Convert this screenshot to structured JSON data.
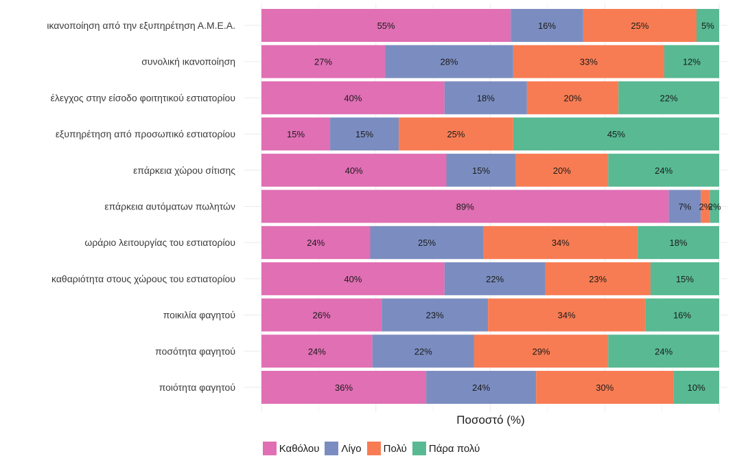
{
  "chart_data": {
    "type": "bar",
    "orientation": "horizontal",
    "stacked": true,
    "categories": [
      "ικανοποίηση από την εξυπηρέτηση Α.Μ.Ε.Α.",
      "συνολική ικανοποίηση",
      "έλεγχος στην είσοδο φοιτητικού εστιατορίου",
      "εξυπηρέτηση από προσωπικό εστιατορίου",
      "επάρκεια χώρου σίτισης",
      "επάρκεια αυτόματων πωλητών",
      "ωράριο λειτουργίας του εστιατορίου",
      "καθαριότητα στους χώρους του εστιατορίου",
      "ποικιλία φαγητού",
      "ποσότητα φαγητού",
      "ποιότητα φαγητού"
    ],
    "series": [
      {
        "name": "Καθόλου",
        "color": "#e06fb4",
        "values": [
          55,
          27,
          40,
          15,
          40,
          89,
          24,
          40,
          26,
          24,
          36
        ],
        "labels": [
          "55%",
          "27%",
          "40%",
          "15%",
          "40%",
          "89%",
          "24%",
          "40%",
          "26%",
          "24%",
          "36%"
        ]
      },
      {
        "name": "Λίγο",
        "color": "#7b8dc0",
        "values": [
          16,
          28,
          18,
          15,
          15,
          7,
          25,
          22,
          23,
          22,
          24
        ],
        "labels": [
          "16%",
          "28%",
          "18%",
          "15%",
          "15%",
          "7%",
          "25%",
          "22%",
          "23%",
          "22%",
          "24%"
        ]
      },
      {
        "name": "Πολύ",
        "color": "#f87c53",
        "values": [
          25,
          33,
          20,
          25,
          20,
          2,
          34,
          23,
          34,
          29,
          30
        ],
        "labels": [
          "25%",
          "33%",
          "20%",
          "25%",
          "20%",
          "2%",
          "34%",
          "23%",
          "34%",
          "29%",
          "30%"
        ]
      },
      {
        "name": "Πάρα πολύ",
        "color": "#58b993",
        "values": [
          5,
          12,
          22,
          45,
          24,
          2,
          18,
          15,
          16,
          24,
          10
        ],
        "labels": [
          "5%",
          "12%",
          "22%",
          "45%",
          "24%",
          "2%",
          "18%",
          "15%",
          "16%",
          "24%",
          "10%"
        ]
      }
    ],
    "xlabel": "Ποσοστό (%)",
    "ylabel": "",
    "title": "",
    "legend_position": "bottom",
    "grid": true
  }
}
